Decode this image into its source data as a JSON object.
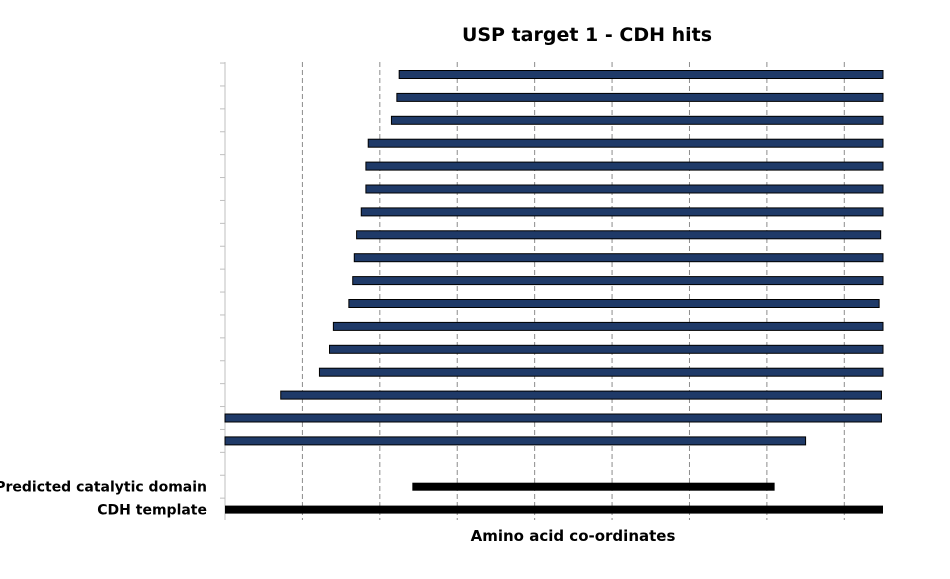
{
  "chart_data": {
    "type": "bar",
    "orientation": "horizontal-range",
    "title": "USP target 1 - CDH hits",
    "xlabel": "Amino acid co-ordinates",
    "ylabel": "",
    "xlim": [
      0,
      850
    ],
    "x_gridlines": [
      0,
      100,
      200,
      300,
      400,
      500,
      600,
      700,
      800
    ],
    "x_tick_labels_shown": false,
    "grid": true,
    "hits_color": "#1f3a68",
    "annotation_color": "#000000",
    "hits": [
      {
        "start": 225,
        "end": 850
      },
      {
        "start": 222,
        "end": 850
      },
      {
        "start": 215,
        "end": 850
      },
      {
        "start": 185,
        "end": 850
      },
      {
        "start": 182,
        "end": 850
      },
      {
        "start": 182,
        "end": 850
      },
      {
        "start": 176,
        "end": 850
      },
      {
        "start": 170,
        "end": 847
      },
      {
        "start": 167,
        "end": 850
      },
      {
        "start": 165,
        "end": 850
      },
      {
        "start": 160,
        "end": 845
      },
      {
        "start": 140,
        "end": 850
      },
      {
        "start": 135,
        "end": 850
      },
      {
        "start": 122,
        "end": 850
      },
      {
        "start": 72,
        "end": 848
      },
      {
        "start": 0,
        "end": 848
      },
      {
        "start": 0,
        "end": 750
      }
    ],
    "annotated_rows": [
      {
        "label": "Predicted catalytic domain",
        "start": 242,
        "end": 710
      },
      {
        "label": "CDH template",
        "start": 0,
        "end": 850
      }
    ]
  }
}
